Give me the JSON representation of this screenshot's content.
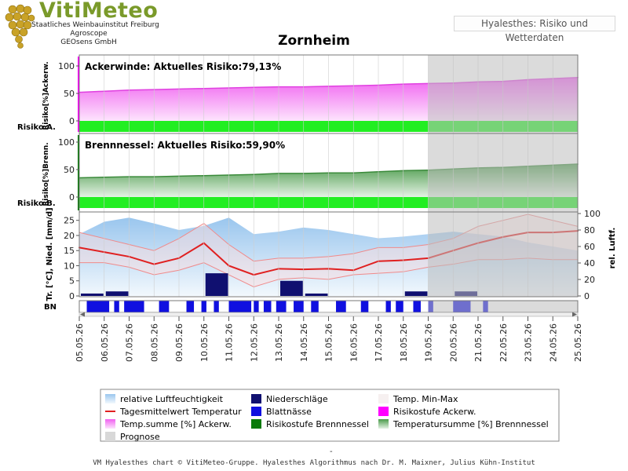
{
  "header": {
    "logo_title": "VitiMeteo",
    "logo_lines": [
      "Staatliches Weinbauinstitut Freiburg",
      "Agroscope",
      "GEOsens GmbH"
    ],
    "badge": "Hyalesthes: Risiko und Wetterdaten"
  },
  "footer": {
    "dash": "-",
    "credit": "VM Hyalesthes chart © VitiMeteo-Gruppe. Hyalesthes Algorithmus nach Dr. M. Maixner, Julius Kühn-Institut"
  },
  "colors": {
    "ackerwinde": "#e040e0",
    "ackerwinde_band": "#ff00ff",
    "brennnessel": "#3a8a3a",
    "brennnessel_band": "#0a7a0a",
    "risk_green": "#22ee22",
    "temperature": "#e02020",
    "humidity": "#a8cef0",
    "precip": "#101070",
    "leaf_wet": "#1010e0",
    "prognose": "#d8d8d8"
  },
  "chart_data": {
    "type": "line",
    "title": "Zornheim",
    "x": [
      "05.05.26",
      "06.05.26",
      "07.05.26",
      "08.05.26",
      "09.05.26",
      "10.05.26",
      "11.05.26",
      "12.05.26",
      "13.05.26",
      "14.05.26",
      "15.05.26",
      "16.05.26",
      "17.05.26",
      "18.05.26",
      "19.05.26",
      "20.05.26",
      "21.05.26",
      "22.05.26",
      "23.05.26",
      "24.05.26",
      "25.05.26"
    ],
    "prognose_from": "19.05.26",
    "panels": [
      {
        "id": "ackerwinde",
        "label": "Ackerwinde:  Aktuelles Risiko:79,13%",
        "ylabel": "Risiko[%]Ackerw.",
        "band_label": "Risiko A.",
        "yticks": [
          0,
          50,
          100
        ],
        "ylim": [
          -20,
          110
        ],
        "series": [
          {
            "name": "Temp.summe [%] Ackerw.",
            "values": [
              52,
              54,
              56,
              57,
              58,
              59,
              60,
              61,
              62,
              62,
              63,
              64,
              65,
              67,
              68,
              69,
              71,
              72,
              75,
              77,
              79
            ]
          }
        ]
      },
      {
        "id": "brennnessel",
        "label": "Brennnessel:  Aktuelles Risiko:59,90%",
        "ylabel": "Risiko[%]Brenn.",
        "band_label": "Risiko B.",
        "yticks": [
          0,
          50,
          100
        ],
        "ylim": [
          -20,
          110
        ],
        "series": [
          {
            "name": "Temperatursumme [%] Brennnessel",
            "values": [
              35,
              36,
              37,
              37,
              38,
              39,
              40,
              41,
              43,
              43,
              44,
              44,
              46,
              48,
              49,
              51,
              53,
              54,
              56,
              58,
              60
            ]
          }
        ]
      },
      {
        "id": "weather",
        "ylabel_left": "Tr. [°C], Nied. [mm/d]",
        "ylabel_right": "rel. Luftf.",
        "yticks_left": [
          0,
          5,
          10,
          15,
          20,
          25
        ],
        "yticks_right": [
          0,
          20,
          40,
          60,
          80,
          100
        ],
        "ylim_left": [
          0,
          27
        ],
        "ylim_right": [
          0,
          100
        ],
        "temperature_mean": [
          16,
          14.5,
          13,
          10.5,
          12.5,
          17.5,
          10,
          7,
          9,
          8.8,
          9,
          8.5,
          11.5,
          11.8,
          12.5,
          15,
          17.5,
          19.5,
          21,
          21,
          21.5
        ],
        "temperature_min": [
          11,
          11,
          9.5,
          7,
          8.5,
          11,
          7,
          3,
          5.5,
          6,
          5.5,
          7,
          7.5,
          8,
          9.5,
          10.5,
          12,
          12,
          12.5,
          12,
          12
        ],
        "temperature_max": [
          21,
          19,
          17,
          15,
          19,
          24,
          17,
          11.5,
          12.5,
          12.5,
          13,
          14,
          16,
          16,
          17,
          19,
          23,
          25,
          27,
          25,
          23
        ],
        "humidity": [
          75,
          90,
          95,
          88,
          80,
          85,
          95,
          75,
          78,
          83,
          80,
          75,
          70,
          72,
          75,
          78,
          75,
          72,
          65,
          60,
          55
        ],
        "precipitation": [
          0.8,
          1.5,
          0,
          0,
          0,
          7.5,
          0,
          0,
          5,
          0.8,
          0,
          0,
          0,
          1.5,
          0,
          1.5,
          0,
          0,
          0,
          0,
          0
        ]
      }
    ],
    "leaf_wetness": {
      "label": "BN",
      "intervals": [
        [
          0.3,
          1.2
        ],
        [
          1.4,
          1.6
        ],
        [
          1.8,
          2.6
        ],
        [
          3.2,
          3.6
        ],
        [
          4.3,
          4.6
        ],
        [
          4.9,
          5.1
        ],
        [
          5.4,
          5.6
        ],
        [
          6.0,
          6.9
        ],
        [
          7.0,
          7.2
        ],
        [
          7.4,
          7.7
        ],
        [
          7.9,
          8.3
        ],
        [
          8.6,
          9.0
        ],
        [
          9.3,
          9.6
        ],
        [
          10.3,
          10.7
        ],
        [
          11.3,
          11.6
        ],
        [
          12.3,
          12.5
        ],
        [
          12.7,
          13.0
        ],
        [
          13.4,
          13.7
        ],
        [
          14.0,
          14.2
        ],
        [
          15.0,
          15.7
        ],
        [
          16.2,
          16.4
        ]
      ]
    },
    "legend": [
      {
        "name": "relative Luftfeuchtigkeit",
        "swatch": "gradient-humidity"
      },
      {
        "name": "Niederschläge",
        "swatch": "precip"
      },
      {
        "name": "Temp. Min-Max",
        "swatch": "minmax"
      },
      {
        "name": "Tagesmittelwert Temperatur",
        "swatch": "line-red"
      },
      {
        "name": "Blattnässe",
        "swatch": "leaf"
      },
      {
        "name": "Risikostufe Ackerw.",
        "swatch": "magenta"
      },
      {
        "name": "Temp.summe [%] Ackerw.",
        "swatch": "gradient-pink"
      },
      {
        "name": "Risikostufe Brennnessel",
        "swatch": "darkgreen"
      },
      {
        "name": "Temperatursumme [%] Brennnessel",
        "swatch": "gradient-green"
      },
      {
        "name": "Prognose",
        "swatch": "grey"
      }
    ]
  }
}
